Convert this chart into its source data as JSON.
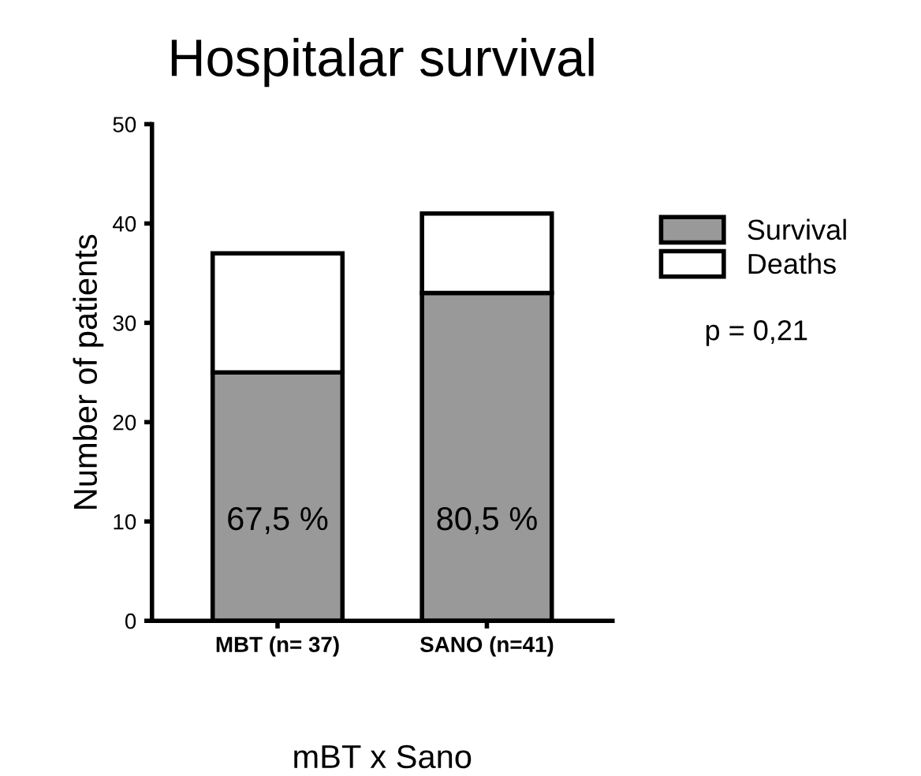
{
  "chart_data": {
    "type": "bar",
    "title": "Hospitalar survival",
    "xlabel": "mBT x Sano",
    "ylabel": "Number of patients",
    "categories": [
      "MBT (n= 37)",
      "SANO (n=41)"
    ],
    "series": [
      {
        "name": "Survival",
        "color": "#999999",
        "values": [
          25,
          33
        ]
      },
      {
        "name": "Deaths",
        "color": "#ffffff",
        "values": [
          12,
          8
        ]
      }
    ],
    "stacked": true,
    "ylim": [
      0,
      50
    ],
    "yticks": [
      0,
      10,
      20,
      30,
      40,
      50
    ],
    "grid": false,
    "legend": "right",
    "annotations": [
      "67,5 %",
      "80,5 %",
      "p = 0,21"
    ]
  }
}
